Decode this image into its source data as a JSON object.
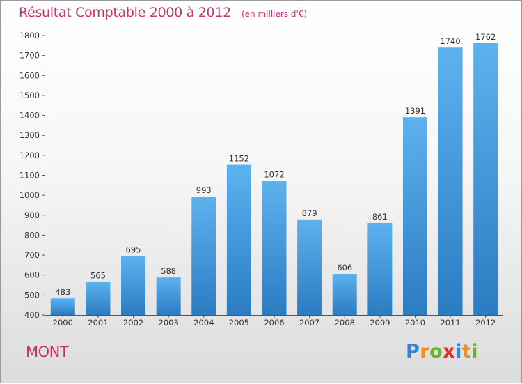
{
  "title": "Résultat Comptable 2000 à 2012",
  "subtitle": "(en milliers d'€)",
  "place": "MONT",
  "logo": {
    "letters": [
      {
        "ch": "P",
        "color": "#2f86d9"
      },
      {
        "ch": "r",
        "color": "#f18f1c"
      },
      {
        "ch": "o",
        "color": "#6ab42d"
      },
      {
        "ch": "x",
        "color": "#e52f28"
      },
      {
        "ch": "i",
        "color": "#2f86d9"
      },
      {
        "ch": "t",
        "color": "#f18f1c"
      },
      {
        "ch": "i",
        "color": "#6ab42d"
      }
    ]
  },
  "colors": {
    "title": "#c8326e",
    "bar_top": "#5db2ee",
    "bar_bottom": "#2b7cc2"
  },
  "chart_data": {
    "type": "bar",
    "title": "Résultat Comptable 2000 à 2012",
    "subtitle": "(en milliers d'€)",
    "categories": [
      "2000",
      "2001",
      "2002",
      "2003",
      "2004",
      "2005",
      "2006",
      "2007",
      "2008",
      "2009",
      "2010",
      "2011",
      "2012"
    ],
    "values": [
      483,
      565,
      695,
      588,
      993,
      1152,
      1072,
      879,
      606,
      861,
      1391,
      1740,
      1762
    ],
    "ylim": [
      400,
      1800
    ],
    "yticks": [
      400,
      500,
      600,
      700,
      800,
      900,
      1000,
      1100,
      1200,
      1300,
      1400,
      1500,
      1600,
      1700,
      1800
    ],
    "xlabel": "",
    "ylabel": "",
    "grid": false,
    "legend": "none"
  }
}
